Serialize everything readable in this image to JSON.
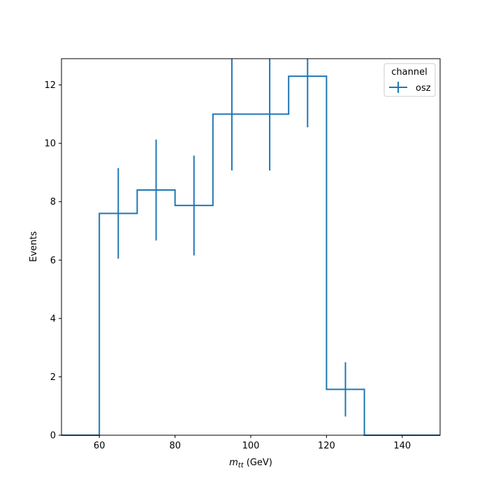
{
  "chart_data": {
    "type": "line",
    "subtype": "step-histogram-with-error-bars",
    "title": "",
    "xlabel_var": "m",
    "xlabel_sub": "tt",
    "xlabel_unit": " (GeV)",
    "ylabel": "Events",
    "xlim": [
      50,
      150
    ],
    "ylim": [
      0,
      12.9
    ],
    "x_ticks": [
      60,
      80,
      100,
      120,
      140
    ],
    "y_ticks": [
      0,
      2,
      4,
      6,
      8,
      10,
      12
    ],
    "grid": false,
    "legend": {
      "title": "channel",
      "placement": "top-right"
    },
    "color": "#1f77b4",
    "series": [
      {
        "name": "osz",
        "bin_edges": [
          50,
          60,
          70,
          80,
          90,
          100,
          110,
          120,
          130,
          140,
          150
        ],
        "values": [
          0,
          7.6,
          8.4,
          7.87,
          11.0,
          11.0,
          12.3,
          1.57,
          0,
          0
        ],
        "errors": [
          0,
          1.55,
          1.73,
          1.71,
          1.93,
          1.93,
          1.75,
          0.93,
          0,
          0
        ]
      }
    ]
  }
}
